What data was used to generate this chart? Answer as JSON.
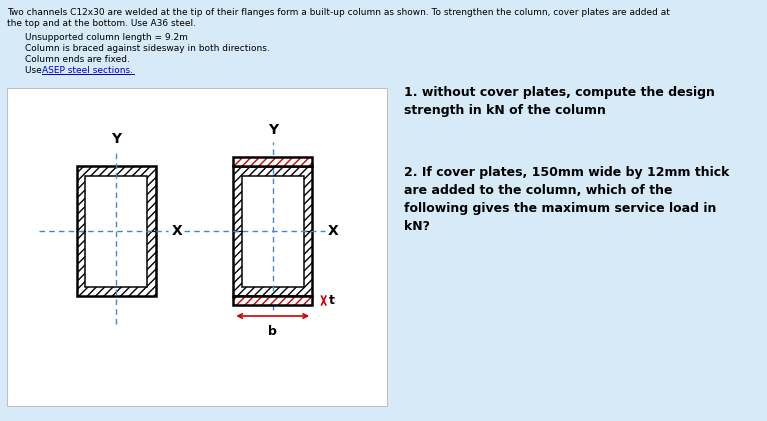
{
  "bg_color": "#d6eaf8",
  "panel_color": "#ffffff",
  "title_line1": "Two channels C12x30 are welded at the tip of their flanges form a built-up column as shown. To strengthen the column, cover plates are added at",
  "title_line2": "the top and at the bottom. Use A36 steel.",
  "bullet1": "Unsupported column length = 9.2m",
  "bullet2": "Column is braced against sidesway in both directions.",
  "bullet3": "Column ends are fixed.",
  "bullet4a": "Use ",
  "bullet4b": "ASEP steel sections.",
  "q1": "1. without cover plates, compute the design\nstrength in kN of the column",
  "q2": "2. If cover plates, 150mm wide by 12mm thick\nare added to the column, which of the\nfollowing gives the maximum service load in\nkN?",
  "hatch_color": "#555555",
  "cover_plate_hatch": "#cc0000",
  "axis_color": "#4488cc",
  "arrow_color": "#cc0000",
  "text_color": "#000000",
  "link_color": "#0000cc"
}
